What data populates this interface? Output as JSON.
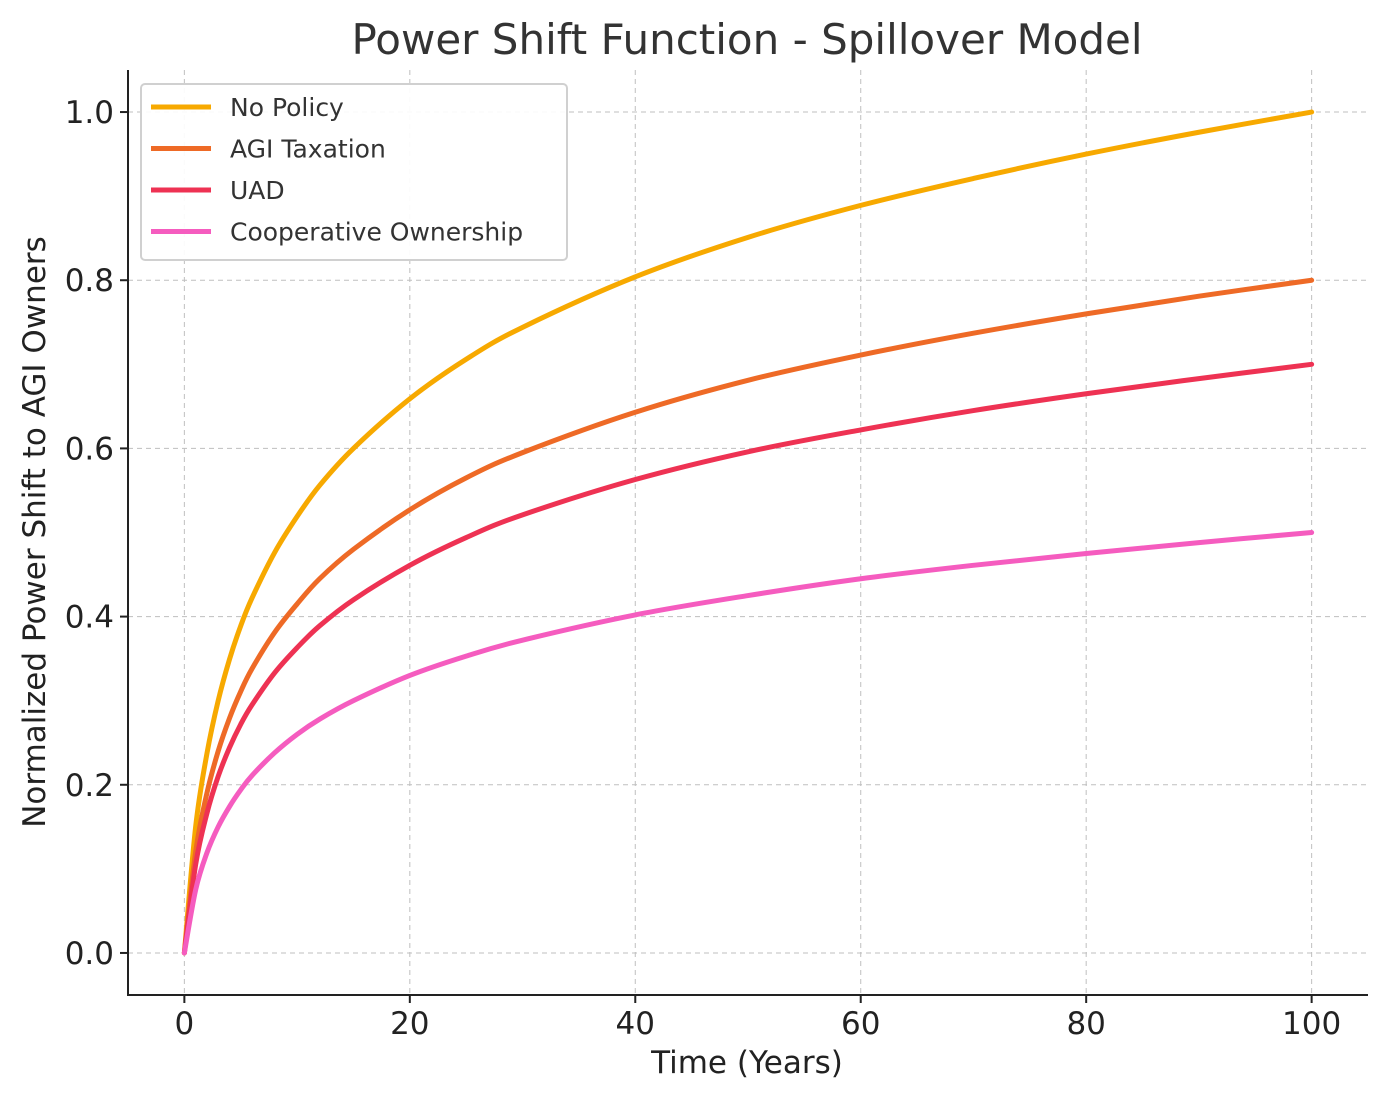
{
  "chart_data": {
    "type": "line",
    "title": "Power Shift Function - Spillover Model",
    "xlabel": "Time (Years)",
    "ylabel": "Normalized Power Shift to AGI Owners",
    "xlim": [
      -5,
      105
    ],
    "ylim": [
      -0.05,
      1.05
    ],
    "xticks": [
      0,
      20,
      40,
      60,
      80,
      100
    ],
    "xtick_labels": [
      "0",
      "20",
      "40",
      "60",
      "80",
      "100"
    ],
    "yticks": [
      0.0,
      0.2,
      0.4,
      0.6,
      0.8,
      1.0
    ],
    "ytick_labels": [
      "0.0",
      "0.2",
      "0.4",
      "0.6",
      "0.8",
      "1.0"
    ],
    "grid": true,
    "legend_position": "top-left",
    "x": [
      0,
      1,
      2,
      3,
      4,
      5,
      6,
      8,
      10,
      12,
      15,
      20,
      25,
      30,
      40,
      50,
      60,
      70,
      80,
      90,
      100
    ],
    "series": [
      {
        "name": "No Policy",
        "color": "#f7a900",
        "values": [
          0.0,
          0.15,
          0.237,
          0.3,
          0.349,
          0.389,
          0.422,
          0.476,
          0.519,
          0.556,
          0.6,
          0.659,
          0.706,
          0.744,
          0.804,
          0.851,
          0.889,
          0.921,
          0.95,
          0.976,
          1.0
        ]
      },
      {
        "name": "AGI Taxation",
        "color": "#ee6a26",
        "values": [
          0.0,
          0.12,
          0.19,
          0.24,
          0.279,
          0.311,
          0.338,
          0.381,
          0.415,
          0.445,
          0.48,
          0.527,
          0.565,
          0.595,
          0.643,
          0.681,
          0.711,
          0.737,
          0.76,
          0.781,
          0.8
        ]
      },
      {
        "name": "UAD",
        "color": "#ee3253",
        "values": [
          0.0,
          0.105,
          0.166,
          0.21,
          0.244,
          0.272,
          0.295,
          0.333,
          0.363,
          0.389,
          0.42,
          0.461,
          0.494,
          0.521,
          0.563,
          0.596,
          0.622,
          0.645,
          0.665,
          0.683,
          0.7
        ]
      },
      {
        "name": "Cooperative Ownership",
        "color": "#f55cbf",
        "values": [
          0.0,
          0.075,
          0.119,
          0.15,
          0.174,
          0.194,
          0.211,
          0.238,
          0.26,
          0.278,
          0.3,
          0.33,
          0.353,
          0.372,
          0.402,
          0.425,
          0.445,
          0.461,
          0.475,
          0.488,
          0.5
        ]
      }
    ]
  }
}
